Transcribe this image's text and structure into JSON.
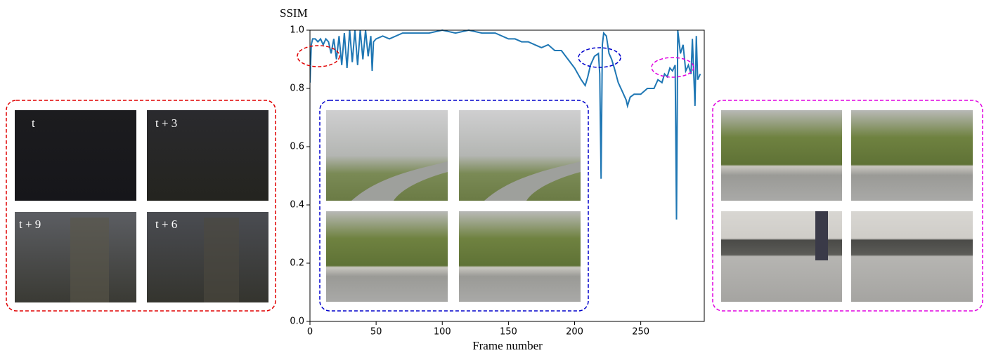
{
  "chart_data": {
    "type": "line",
    "ylabel": "SSIM",
    "xlabel": "Frame number",
    "x": [
      0,
      1,
      2,
      4,
      6,
      8,
      10,
      12,
      14,
      16,
      18,
      20,
      22,
      24,
      26,
      28,
      30,
      32,
      34,
      36,
      38,
      40,
      42,
      44,
      46,
      47,
      48,
      50,
      55,
      60,
      70,
      80,
      90,
      100,
      110,
      120,
      130,
      140,
      150,
      155,
      160,
      165,
      170,
      175,
      180,
      185,
      190,
      195,
      200,
      205,
      208,
      210,
      212,
      215,
      218,
      219,
      220,
      221,
      222,
      224,
      226,
      228,
      230,
      233,
      236,
      239,
      240,
      242,
      245,
      250,
      255,
      260,
      263,
      266,
      268,
      270,
      272,
      274,
      276,
      277,
      278,
      280,
      282,
      284,
      286,
      288,
      289,
      290,
      291,
      292,
      293,
      295
    ],
    "series": [
      {
        "color": "#1f77b4",
        "values": [
          0.82,
          0.95,
          0.97,
          0.97,
          0.96,
          0.97,
          0.95,
          0.97,
          0.96,
          0.92,
          0.97,
          0.9,
          0.98,
          0.88,
          0.99,
          0.87,
          1.0,
          0.89,
          1.0,
          0.88,
          1.0,
          0.9,
          1.0,
          0.91,
          0.98,
          0.86,
          0.96,
          0.97,
          0.98,
          0.97,
          0.99,
          0.99,
          0.99,
          1.0,
          0.99,
          1.0,
          0.99,
          0.99,
          0.97,
          0.97,
          0.96,
          0.96,
          0.95,
          0.94,
          0.95,
          0.93,
          0.93,
          0.9,
          0.87,
          0.83,
          0.81,
          0.84,
          0.88,
          0.91,
          0.92,
          0.85,
          0.49,
          0.95,
          0.99,
          0.98,
          0.92,
          0.9,
          0.87,
          0.82,
          0.79,
          0.76,
          0.74,
          0.77,
          0.78,
          0.78,
          0.8,
          0.8,
          0.83,
          0.82,
          0.85,
          0.84,
          0.87,
          0.86,
          0.88,
          0.35,
          1.0,
          0.92,
          0.95,
          0.86,
          0.88,
          0.85,
          0.97,
          0.86,
          0.74,
          0.98,
          0.83,
          0.85
        ]
      }
    ],
    "xlim": [
      0,
      298
    ],
    "ylim": [
      0,
      1
    ],
    "xticks": [
      0,
      50,
      100,
      150,
      200,
      250
    ],
    "yticks": [
      {
        "value": 0,
        "label": "0.0"
      },
      {
        "value": 0.2,
        "label": "0.2"
      },
      {
        "value": 0.4,
        "label": "0.4"
      },
      {
        "value": 0.6,
        "label": "0.6"
      },
      {
        "value": 0.8,
        "label": "0.8"
      },
      {
        "value": 1,
        "label": "1.0"
      }
    ]
  },
  "frame_labels": [
    "t",
    "t + 3",
    "t + 9",
    "t + 6"
  ]
}
